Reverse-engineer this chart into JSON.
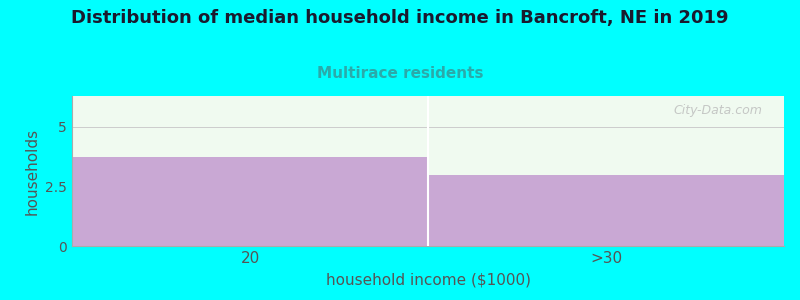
{
  "title": "Distribution of median household income in Bancroft, NE in 2019",
  "subtitle": "Multirace residents",
  "xlabel": "household income ($1000)",
  "ylabel": "households",
  "categories": [
    "20",
    ">30"
  ],
  "values": [
    3.75,
    3.0
  ],
  "bar_color": "#C9A8D4",
  "background_color": "#00FFFF",
  "plot_bg_color": "#F0FAF0",
  "title_fontsize": 13,
  "subtitle_fontsize": 11,
  "subtitle_color": "#2AAAAA",
  "axis_label_color": "#555555",
  "tick_label_color": "#555555",
  "ylim": [
    0,
    6.3
  ],
  "yticks": [
    0,
    2.5,
    5
  ],
  "watermark": "City-Data.com",
  "figsize": [
    8.0,
    3.0
  ],
  "dpi": 100
}
